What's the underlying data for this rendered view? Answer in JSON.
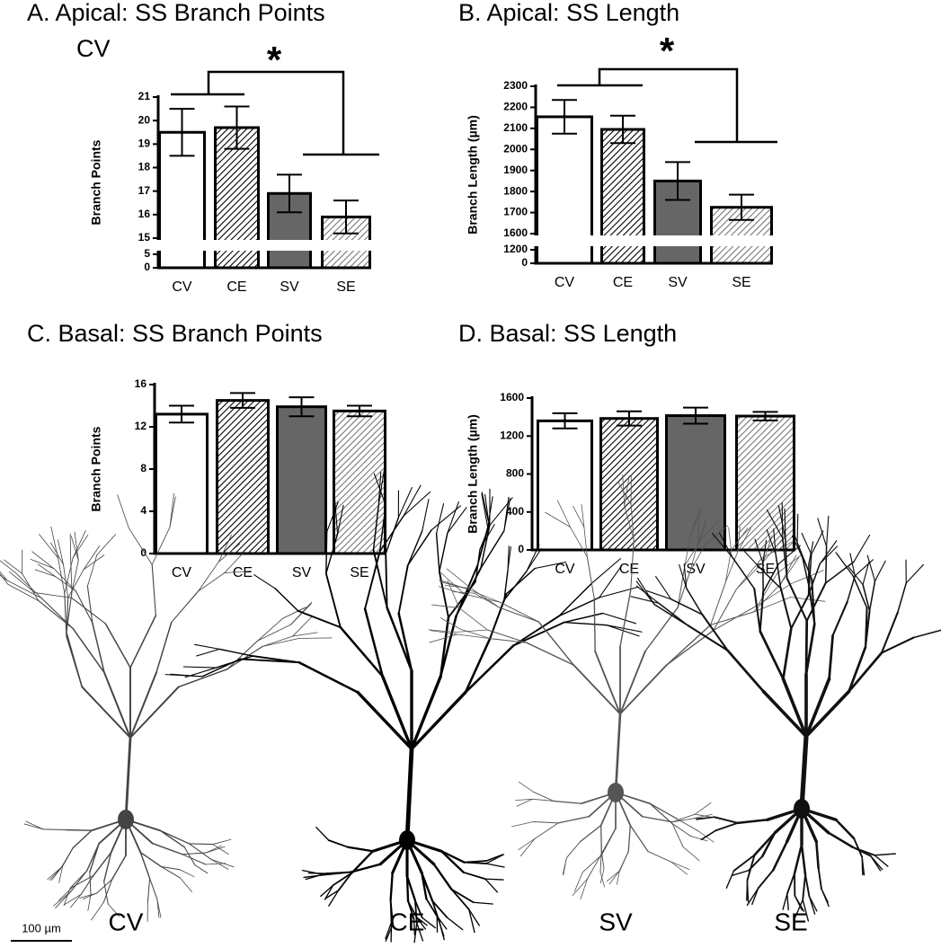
{
  "chart_data": [
    {
      "type": "bar",
      "title": "A. Apical: SS Branch Points",
      "subtitle": "CV",
      "annotation": "*",
      "ylabel": "Branch Points",
      "categories": [
        "CV",
        "CE",
        "SV",
        "SE"
      ],
      "values": [
        19.5,
        19.7,
        16.9,
        15.9
      ],
      "errors": [
        1.0,
        0.9,
        0.8,
        0.7
      ],
      "colors": [
        "#ffffff",
        "#000000",
        "#666666",
        "#777777"
      ],
      "patterns": [
        "solid",
        "hatch",
        "solid",
        "hatch"
      ],
      "ylim": [
        0,
        21
      ],
      "ybreak": [
        5,
        15
      ],
      "yticks": [
        0,
        5,
        15,
        16,
        17,
        18,
        19,
        20,
        21
      ]
    },
    {
      "type": "bar",
      "title": "B. Apical: SS Length",
      "annotation": "*",
      "ylabel": "Branch Length (µm)",
      "categories": [
        "CV",
        "CE",
        "SV",
        "SE"
      ],
      "values": [
        2155,
        2095,
        1850,
        1725
      ],
      "errors": [
        80,
        65,
        90,
        60
      ],
      "colors": [
        "#ffffff",
        "#000000",
        "#666666",
        "#777777"
      ],
      "patterns": [
        "solid",
        "hatch",
        "solid",
        "hatch"
      ],
      "ylim": [
        0,
        2300
      ],
      "ybreak": [
        1200,
        1600
      ],
      "yticks": [
        0,
        1200,
        1600,
        1700,
        1800,
        1900,
        2000,
        2100,
        2200,
        2300
      ]
    },
    {
      "type": "bar",
      "title": "C. Basal: SS Branch Points",
      "ylabel": "Branch Points",
      "categories": [
        "CV",
        "CE",
        "SV",
        "SE"
      ],
      "values": [
        13.2,
        14.5,
        13.9,
        13.5
      ],
      "errors": [
        0.8,
        0.7,
        0.9,
        0.5
      ],
      "colors": [
        "#ffffff",
        "#000000",
        "#666666",
        "#777777"
      ],
      "patterns": [
        "solid",
        "hatch",
        "solid",
        "hatch"
      ],
      "ylim": [
        0,
        16
      ],
      "yticks": [
        0,
        4,
        8,
        12,
        16
      ]
    },
    {
      "type": "bar",
      "title": "D. Basal: SS Length",
      "ylabel": "Branch Length (µm)",
      "categories": [
        "CV",
        "CE",
        "SV",
        "SE"
      ],
      "values": [
        1360,
        1385,
        1415,
        1410
      ],
      "errors": [
        80,
        75,
        85,
        45
      ],
      "colors": [
        "#ffffff",
        "#000000",
        "#666666",
        "#777777"
      ],
      "patterns": [
        "solid",
        "hatch",
        "solid",
        "hatch"
      ],
      "ylim": [
        0,
        1600
      ],
      "yticks": [
        0,
        400,
        800,
        1200,
        1600
      ]
    }
  ],
  "images": {
    "labels": [
      "CV",
      "CE",
      "SV",
      "SE"
    ],
    "scale_bar": "100 µm"
  }
}
